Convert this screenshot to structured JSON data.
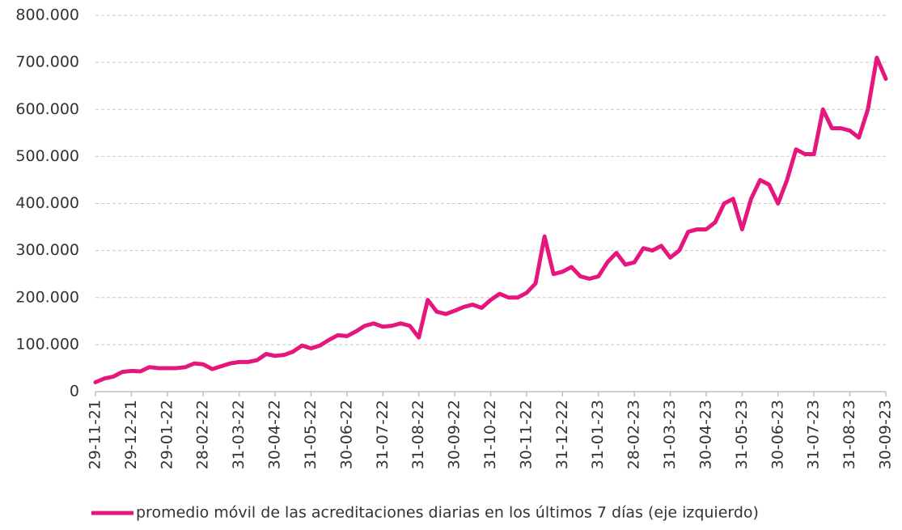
{
  "chart_data": {
    "type": "line",
    "categories": [
      "29-11-21",
      null,
      null,
      null,
      "29-12-21",
      null,
      null,
      null,
      "29-01-22",
      null,
      null,
      null,
      "28-02-22",
      null,
      null,
      null,
      "31-03-22",
      null,
      null,
      null,
      "30-04-22",
      null,
      null,
      null,
      "31-05-22",
      null,
      null,
      null,
      "30-06-22",
      null,
      null,
      null,
      "31-07-22",
      null,
      null,
      null,
      "31-08-22",
      null,
      null,
      null,
      "30-09-22",
      null,
      null,
      null,
      "31-10-22",
      null,
      null,
      null,
      "30-11-22",
      null,
      null,
      null,
      "31-12-22",
      null,
      null,
      null,
      "31-01-23",
      null,
      null,
      null,
      "28-02-23",
      null,
      null,
      null,
      "31-03-23",
      null,
      null,
      null,
      "30-04-23",
      null,
      null,
      null,
      "31-05-23",
      null,
      null,
      null,
      "30-06-23",
      null,
      null,
      null,
      "31-07-23",
      null,
      null,
      null,
      "31-08-23",
      null,
      null,
      null,
      "30-09-23"
    ],
    "series": [
      {
        "name": "promedio móvil de las acreditaciones diarias en los últimos 7 días (eje izquierdo)",
        "color": "#e5177e",
        "values": [
          20000,
          28000,
          32000,
          42000,
          44000,
          43000,
          52000,
          50000,
          50000,
          50000,
          52000,
          60000,
          58000,
          48000,
          54000,
          60000,
          63000,
          63000,
          67000,
          80000,
          76000,
          78000,
          85000,
          98000,
          92000,
          98000,
          110000,
          120000,
          118000,
          128000,
          140000,
          145000,
          138000,
          140000,
          145000,
          140000,
          115000,
          195000,
          170000,
          165000,
          172000,
          180000,
          185000,
          178000,
          195000,
          208000,
          200000,
          200000,
          210000,
          230000,
          330000,
          250000,
          255000,
          265000,
          245000,
          240000,
          245000,
          275000,
          295000,
          270000,
          275000,
          305000,
          300000,
          310000,
          285000,
          300000,
          340000,
          345000,
          345000,
          360000,
          400000,
          410000,
          345000,
          410000,
          450000,
          440000,
          400000,
          450000,
          515000,
          505000,
          505000,
          600000,
          560000,
          560000,
          555000,
          540000,
          600000,
          710000,
          665000
        ]
      }
    ],
    "ylim": [
      0,
      800000
    ],
    "yticks": [
      0,
      {
        "value": 100000,
        "label": "100.000"
      },
      {
        "value": 200000,
        "label": "200.000"
      },
      {
        "value": 300000,
        "label": "300.000"
      },
      {
        "value": 400000,
        "label": "400.000"
      },
      {
        "value": 500000,
        "label": "500.000"
      },
      {
        "value": 600000,
        "label": "600.000"
      },
      {
        "value": 700000,
        "label": "700.000"
      },
      {
        "value": 800000,
        "label": "800.000"
      }
    ],
    "grid": true
  }
}
